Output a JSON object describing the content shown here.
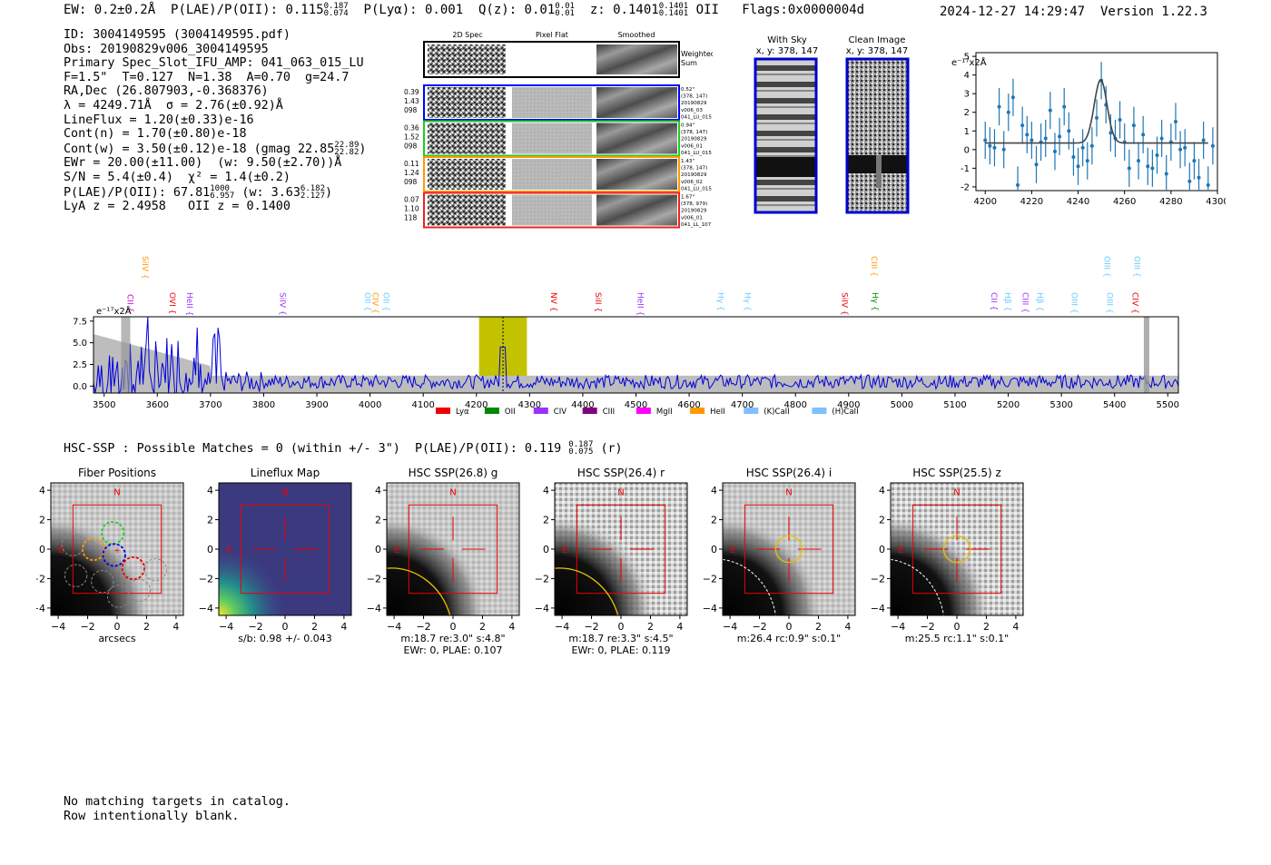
{
  "header": {
    "ew": "EW: 0.2±0.2Å",
    "plae_label": "P(LAE)/P(OII): 0.115",
    "plae_hi": "0.187",
    "plae_lo": "0.074",
    "plya": "P(Lyα): 0.001",
    "qz_label": "Q(z): 0.01",
    "qz_hi": "0.01",
    "qz_lo": "0.01",
    "z_label": "z: 0.1401",
    "z_hi": "0.1401",
    "z_lo": "0.1401",
    "z_line": "OII",
    "flags": "Flags:0x0000004d",
    "datetime": "2024-12-27 14:29:47",
    "version": "Version 1.22.3"
  },
  "info": {
    "id": "ID: 3004149595 (3004149595.pdf)",
    "obs": "Obs: 20190829v006_3004149595",
    "primary": "Primary Spec_Slot_IFU_AMP: 041_063_015_LU",
    "params": "F=1.5\"  T=0.127  N=1.38  A=0.70  g=24.7",
    "radec": "RA,Dec (26.807903,-0.368376)",
    "lambda": "λ = 4249.71Å  σ = 2.76(±0.92)Å",
    "lineflux": "LineFlux = 1.20(±0.33)e-16",
    "contn": "Cont(n) = 1.70(±0.80)e-18",
    "contw_pre": "Cont(w) = 3.50(±0.12)e-18 (gmag 22.85",
    "contw_hi": "22.89",
    "contw_lo": "22.82",
    "contw_post": ")",
    "ewr": "EWr = 20.00(±11.00)  (w: 9.50(±2.70))Å",
    "sn": "S/N = 5.4(±0.4)  χ² = 1.4(±0.2)",
    "plae_pre": "P(LAE)/P(OII): 67.81",
    "plae_hi": "1000",
    "plae_lo": "6.957",
    "plae_mid": " (w: 3.63",
    "plae_w_hi": "6.182",
    "plae_w_lo": "2.127",
    "plae_post": ")",
    "lya_z": "LyA z = 2.4958   OII z = 0.1400"
  },
  "cutouts": {
    "col_titles": [
      "2D Spec",
      "Pixel Flat",
      "Smoothed"
    ],
    "weighted_sum": [
      "Weighted",
      "Sum"
    ],
    "rows": [
      {
        "color": "#0000ff",
        "left": [
          "0.39",
          "1.43",
          "098"
        ],
        "right": [
          "0.52\"",
          "(378, 147)",
          "20190829",
          "v006_03",
          "041_LU_015"
        ]
      },
      {
        "color": "#22cc22",
        "left": [
          "0.36",
          "1.52",
          "098"
        ],
        "right": [
          "0.94\"",
          "(378, 147)",
          "20190829",
          "v006_01",
          "041_LU_015"
        ]
      },
      {
        "color": "#ff9900",
        "left": [
          "0.11",
          "1.24",
          "098"
        ],
        "right": [
          "1.43\"",
          "(378, 147)",
          "20190829",
          "v006_02",
          "041_LU_015"
        ]
      },
      {
        "color": "#ee2222",
        "left": [
          "0.07",
          "1.10",
          "118"
        ],
        "right": [
          "1.67\"",
          "(378, 979)",
          "20190829",
          "v006_01",
          "041_LL_107"
        ]
      }
    ]
  },
  "sky_panels": {
    "with_sky_title": "With Sky",
    "with_sky_xy": "x, y: 378, 147",
    "clean_title": "Clean Image",
    "clean_xy": "x, y: 378, 147"
  },
  "zoom_plot": {
    "unit_label": "e⁻¹⁷x2Å",
    "xticks": [
      "4200",
      "4220",
      "4240",
      "4260",
      "4280",
      "4300"
    ],
    "yticks": [
      "5",
      "4",
      "3",
      "2",
      "1",
      "0",
      "-1",
      "-2"
    ]
  },
  "full_spectrum": {
    "unit_label": "e⁻¹⁷x2Å",
    "yticks": [
      "7.5",
      "5.0",
      "2.5",
      "0.0"
    ],
    "xticks": [
      "3500",
      "3600",
      "3700",
      "3800",
      "3900",
      "4000",
      "4100",
      "4200",
      "4300",
      "4400",
      "4500",
      "4600",
      "4700",
      "4800",
      "4900",
      "5000",
      "5100",
      "5200",
      "5300",
      "5400",
      "5500"
    ],
    "line_labels": [
      {
        "t": "CII",
        "c": "#cc00cc",
        "w": 3539,
        "row": 2
      },
      {
        "t": "SiIV",
        "c": "#ff9900",
        "w": 3567,
        "row": 0
      },
      {
        "t": "OVI",
        "c": "#ee0000",
        "w": 3618,
        "row": 1
      },
      {
        "t": "HeII",
        "c": "#9933ff",
        "w": 3651,
        "row": 1
      },
      {
        "t": "SiIV",
        "c": "#9933ff",
        "w": 3826,
        "row": 1
      },
      {
        "t": "OII",
        "c": "#66ccff",
        "w": 3985,
        "row": 1
      },
      {
        "t": "CIV",
        "c": "#ff9900",
        "w": 4000,
        "row": 1
      },
      {
        "t": "OII",
        "c": "#66ccff",
        "w": 4020,
        "row": 1
      },
      {
        "t": "NV",
        "c": "#ee0000",
        "w": 4335,
        "row": 1
      },
      {
        "t": "SiII",
        "c": "#ee0000",
        "w": 4419,
        "row": 1
      },
      {
        "t": "HeII",
        "c": "#9933ff",
        "w": 4498,
        "row": 1
      },
      {
        "t": "Hγ",
        "c": "#66ccff",
        "w": 4649,
        "row": 1
      },
      {
        "t": "Hγ",
        "c": "#66ccff",
        "w": 4700,
        "row": 1
      },
      {
        "t": "SiIV",
        "c": "#ee0000",
        "w": 4882,
        "row": 1
      },
      {
        "t": "CIII",
        "c": "#ff9900",
        "w": 4938,
        "row": 0
      },
      {
        "t": "Hγ",
        "c": "#008800",
        "w": 4940,
        "row": 1
      },
      {
        "t": "CII",
        "c": "#9933ff",
        "w": 5163,
        "row": 1
      },
      {
        "t": "Hβ",
        "c": "#66ccff",
        "w": 5189,
        "row": 1
      },
      {
        "t": "CIII",
        "c": "#9933ff",
        "w": 5222,
        "row": 1
      },
      {
        "t": "Hβ",
        "c": "#66ccff",
        "w": 5249,
        "row": 1
      },
      {
        "t": "OIII",
        "c": "#66ccff",
        "w": 5314,
        "row": 1
      },
      {
        "t": "OIII",
        "c": "#66ccff",
        "w": 5376,
        "row": 0
      },
      {
        "t": "OIII",
        "c": "#66ccff",
        "w": 5381,
        "row": 1
      },
      {
        "t": "OIII",
        "c": "#66ccff",
        "w": 5432,
        "row": 0
      },
      {
        "t": "CIV",
        "c": "#ee0000",
        "w": 5429,
        "row": 1
      }
    ],
    "legend": [
      {
        "t": "Lyα",
        "c": "#ee0000"
      },
      {
        "t": "OII",
        "c": "#008800"
      },
      {
        "t": "CIV",
        "c": "#9933ff"
      },
      {
        "t": "CIII",
        "c": "#800080"
      },
      {
        "t": "MgII",
        "c": "#ff00ff"
      },
      {
        "t": "HeII",
        "c": "#ff9900"
      },
      {
        "t": "(K)CaII",
        "c": "#80c0ff"
      },
      {
        "t": "(H)CaII",
        "c": "#80c0ff"
      }
    ]
  },
  "hsc": {
    "line_pre": "HSC-SSP : Possible Matches = 0 (within +/- 3\")  P(LAE)/P(OII): 0.119",
    "line_hi": "0.187",
    "line_lo": "0.075",
    "line_post": "(r)",
    "panels": [
      {
        "title": "Fiber Positions",
        "cap1": "arcsecs",
        "cap2": ""
      },
      {
        "title": "Lineflux Map",
        "cap1": "s/b: 0.98 +/- 0.043",
        "cap2": ""
      },
      {
        "title": "HSC SSP(26.8) g",
        "cap1": "m:18.7  re:3.0\"  s:4.8\"",
        "cap2": "EWr: 0, PLAE: 0.107"
      },
      {
        "title": "HSC SSP(26.4) r",
        "cap1": "m:18.7  re:3.3\"  s:4.5\"",
        "cap2": "EWr: 0, PLAE: 0.119"
      },
      {
        "title": "HSC SSP(26.4) i",
        "cap1": "m:26.4 rc:0.9\"  s:0.1\"",
        "cap2": ""
      },
      {
        "title": "HSC SSP(25.5) z",
        "cap1": "m:25.5 rc:1.1\"  s:0.1\"",
        "cap2": ""
      }
    ],
    "ticks": [
      "4",
      "2",
      "0",
      "−2",
      "−4"
    ],
    "xticks": [
      "−4",
      "−2",
      "0",
      "2",
      "4"
    ],
    "n_label": "N",
    "e_label": "E"
  },
  "footer": {
    "line1": "No matching targets in catalog.",
    "line2": "Row intentionally blank."
  },
  "chart_data": [
    {
      "type": "scatter",
      "title": "",
      "ylabel": "e⁻¹⁷x2Å",
      "xlim": [
        4196,
        4300
      ],
      "ylim": [
        -2.2,
        5.2
      ],
      "x": [
        4200,
        4202,
        4204,
        4206,
        4208,
        4210,
        4212,
        4214,
        4216,
        4218,
        4220,
        4222,
        4224,
        4226,
        4228,
        4230,
        4232,
        4234,
        4236,
        4238,
        4240,
        4242,
        4244,
        4246,
        4248,
        4250,
        4252,
        4254,
        4256,
        4258,
        4260,
        4262,
        4264,
        4266,
        4268,
        4270,
        4272,
        4274,
        4276,
        4278,
        4280,
        4282,
        4284,
        4286,
        4288,
        4290,
        4292,
        4294,
        4296,
        4298
      ],
      "y": [
        0.5,
        0.2,
        0.1,
        2.3,
        0.0,
        2.0,
        2.8,
        -1.9,
        1.3,
        0.8,
        0.5,
        -0.8,
        0.4,
        0.6,
        2.1,
        -0.1,
        0.7,
        2.3,
        1.0,
        -0.4,
        -0.9,
        0.1,
        -0.6,
        0.2,
        1.7,
        3.7,
        2.4,
        0.9,
        0.6,
        1.6,
        0.4,
        -1.0,
        1.3,
        -0.6,
        0.8,
        -0.9,
        -1.0,
        -0.3,
        0.6,
        -1.3,
        0.4,
        1.5,
        0.0,
        0.1,
        -1.7,
        -0.6,
        -1.5,
        0.5,
        -1.9,
        0.2
      ],
      "errors": 1.0,
      "model": {
        "continuum": 0.35,
        "center": 4249.7,
        "sigma": 2.76,
        "peak": 3.75
      }
    },
    {
      "type": "line",
      "title": "",
      "ylabel": "e⁻¹⁷x2Å",
      "xlim": [
        3480,
        5520
      ],
      "ylim": [
        -0.8,
        8.0
      ],
      "highlight_range": [
        4205,
        4295
      ],
      "line_center": 4250,
      "description": "Full-range spectrum (blue) with grey error envelope; tall noise at blue end, flat ~0.5 elsewhere, peak at 4250"
    }
  ]
}
